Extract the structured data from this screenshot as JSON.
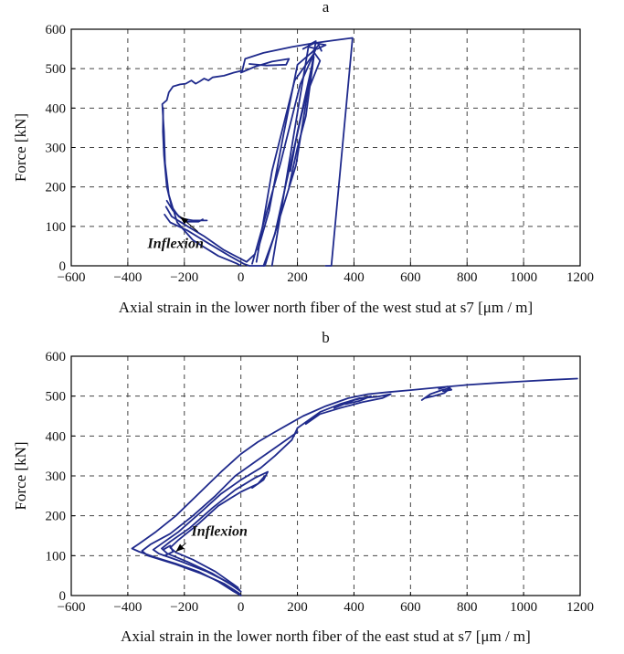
{
  "chart_data": [
    {
      "type": "line",
      "title": "a",
      "xlabel": "Axial strain in the lower north fiber of the west stud at s7 [μm / m]",
      "ylabel": "Force [kN]",
      "xlim": [
        -600,
        1200
      ],
      "ylim": [
        0,
        600
      ],
      "xticks": [
        "−600",
        "−400",
        "−200",
        "0",
        "200",
        "400",
        "600",
        "800",
        "1000",
        "1200"
      ],
      "yticks": [
        "0",
        "100",
        "200",
        "300",
        "400",
        "500",
        "600"
      ],
      "grid": true,
      "color": "#1f2a8c",
      "annotation": {
        "text": "Inflexion",
        "target": [
          -215,
          125
        ],
        "label_at": [
          -330,
          45
        ]
      },
      "series": [
        {
          "points": [
            [
              0,
              0
            ],
            [
              -15,
              6
            ],
            [
              -80,
              25
            ],
            [
              -170,
              65
            ],
            [
              -225,
              110
            ],
            [
              -255,
              180
            ],
            [
              -268,
              260
            ],
            [
              -272,
              340
            ],
            [
              -278,
              410
            ],
            [
              -262,
              420
            ],
            [
              -255,
              440
            ],
            [
              -240,
              455
            ],
            [
              -215,
              460
            ],
            [
              -195,
              462
            ],
            [
              -175,
              470
            ],
            [
              -160,
              462
            ],
            [
              -145,
              468
            ],
            [
              -130,
              475
            ],
            [
              -115,
              470
            ],
            [
              -100,
              478
            ],
            [
              -60,
              482
            ],
            [
              -25,
              490
            ],
            [
              5,
              495
            ],
            [
              15,
              525
            ],
            [
              80,
              540
            ],
            [
              180,
              555
            ],
            [
              260,
              565
            ],
            [
              330,
              572
            ],
            [
              395,
              578
            ],
            [
              320,
              0
            ],
            [
              300,
              0
            ]
          ]
        },
        {
          "points": [
            [
              -270,
              130
            ],
            [
              -250,
              110
            ],
            [
              -190,
              90
            ],
            [
              -110,
              55
            ],
            [
              -40,
              25
            ],
            [
              10,
              5
            ],
            [
              30,
              0
            ],
            [
              60,
              0
            ],
            [
              85,
              0
            ],
            [
              195,
              255
            ],
            [
              265,
              570
            ],
            [
              240,
              560
            ],
            [
              110,
              0
            ]
          ]
        },
        {
          "points": [
            [
              -265,
              150
            ],
            [
              -245,
              125
            ],
            [
              -200,
              105
            ],
            [
              -130,
              75
            ],
            [
              -60,
              40
            ],
            [
              20,
              10
            ],
            [
              50,
              30
            ]
          ]
        },
        {
          "points": [
            [
              -262,
              165
            ],
            [
              -240,
              140
            ],
            [
              -210,
              120
            ],
            [
              -170,
              115
            ],
            [
              -120,
              115
            ]
          ]
        },
        {
          "points": [
            [
              -275,
              400
            ],
            [
              -276,
              340
            ],
            [
              -272,
              280
            ],
            [
              -262,
              200
            ],
            [
              -245,
              150
            ],
            [
              -220,
              125
            ],
            [
              -190,
              112
            ],
            [
              -150,
              112
            ],
            [
              -135,
              118
            ]
          ]
        },
        {
          "points": [
            [
              170,
              200
            ],
            [
              200,
              300
            ],
            [
              230,
              380
            ],
            [
              258,
              530
            ],
            [
              240,
              470
            ],
            [
              200,
              340
            ],
            [
              175,
              240
            ]
          ]
        },
        {
          "points": [
            [
              55,
              10
            ],
            [
              110,
              240
            ],
            [
              190,
              470
            ],
            [
              260,
              540
            ],
            [
              280,
              520
            ],
            [
              230,
              430
            ],
            [
              160,
              210
            ],
            [
              120,
              80
            ],
            [
              80,
              0
            ]
          ]
        },
        {
          "points": [
            [
              40,
              5
            ],
            [
              140,
              260
            ],
            [
              210,
              460
            ],
            [
              265,
              550
            ],
            [
              200,
              510
            ],
            [
              150,
              330
            ],
            [
              100,
              140
            ],
            [
              60,
              40
            ]
          ]
        },
        {
          "points": [
            [
              0,
              490
            ],
            [
              50,
              505
            ],
            [
              110,
              518
            ],
            [
              170,
              525
            ],
            [
              160,
              510
            ],
            [
              90,
              508
            ],
            [
              30,
              512
            ]
          ]
        },
        {
          "points": [
            [
              220,
              550
            ],
            [
              260,
              565
            ],
            [
              300,
              560
            ],
            [
              270,
              550
            ],
            [
              240,
              555
            ]
          ]
        },
        {
          "points": [
            [
              250,
              540
            ],
            [
              275,
              560
            ],
            [
              285,
              545
            ]
          ]
        }
      ]
    },
    {
      "type": "line",
      "title": "b",
      "xlabel": "Axial strain in the lower north fiber of the east stud at s7 [μm / m]",
      "ylabel": "Force [kN]",
      "xlim": [
        -600,
        1200
      ],
      "ylim": [
        0,
        600
      ],
      "xticks": [
        "−600",
        "−400",
        "−200",
        "0",
        "200",
        "400",
        "600",
        "800",
        "1000",
        "1200"
      ],
      "yticks": [
        "0",
        "100",
        "200",
        "300",
        "400",
        "500",
        "600"
      ],
      "grid": true,
      "color": "#1f2a8c",
      "annotation": {
        "text": "Inflexion",
        "target": [
          -230,
          110
        ],
        "label_at": [
          -175,
          150
        ]
      },
      "series": [
        {
          "points": [
            [
              0,
              0
            ],
            [
              -25,
              10
            ],
            [
              -80,
              35
            ],
            [
              -150,
              60
            ],
            [
              -230,
              80
            ],
            [
              -300,
              95
            ],
            [
              -360,
              110
            ],
            [
              -385,
              118
            ],
            [
              -360,
              130
            ],
            [
              -300,
              160
            ],
            [
              -230,
              200
            ],
            [
              -150,
              255
            ],
            [
              -70,
              310
            ],
            [
              0,
              355
            ],
            [
              60,
              385
            ],
            [
              120,
              410
            ],
            [
              170,
              430
            ],
            [
              220,
              450
            ],
            [
              300,
              475
            ],
            [
              380,
              495
            ],
            [
              450,
              505
            ],
            [
              520,
              510
            ],
            [
              600,
              515
            ],
            [
              700,
              522
            ],
            [
              800,
              528
            ],
            [
              900,
              533
            ],
            [
              1000,
              537
            ],
            [
              1100,
              541
            ],
            [
              1190,
              544
            ]
          ]
        },
        {
          "points": [
            [
              -5,
              5
            ],
            [
              -60,
              30
            ],
            [
              -140,
              55
            ],
            [
              -230,
              78
            ],
            [
              -330,
              100
            ],
            [
              -350,
              112
            ],
            [
              -320,
              128
            ],
            [
              -250,
              155
            ],
            [
              -170,
              200
            ],
            [
              -90,
              250
            ],
            [
              -20,
              300
            ],
            [
              60,
              340
            ],
            [
              140,
              380
            ],
            [
              200,
              410
            ]
          ]
        },
        {
          "points": [
            [
              0,
              10
            ],
            [
              -50,
              35
            ],
            [
              -120,
              60
            ],
            [
              -210,
              85
            ],
            [
              -290,
              105
            ],
            [
              -310,
              115
            ],
            [
              -280,
              130
            ],
            [
              -220,
              160
            ],
            [
              -140,
              210
            ],
            [
              -70,
              255
            ],
            [
              0,
              290
            ],
            [
              70,
              320
            ],
            [
              120,
              350
            ],
            [
              180,
              390
            ],
            [
              200,
              420
            ]
          ]
        },
        {
          "points": [
            [
              -5,
              15
            ],
            [
              -100,
              55
            ],
            [
              -190,
              85
            ],
            [
              -260,
              105
            ],
            [
              -280,
              118
            ],
            [
              -250,
              135
            ],
            [
              -180,
              170
            ],
            [
              -100,
              220
            ],
            [
              -20,
              265
            ],
            [
              50,
              295
            ],
            [
              95,
              310
            ],
            [
              80,
              290
            ],
            [
              40,
              270
            ]
          ]
        },
        {
          "points": [
            [
              -10,
              20
            ],
            [
              -90,
              60
            ],
            [
              -170,
              90
            ],
            [
              -230,
              108
            ],
            [
              -250,
              120
            ],
            [
              -220,
              140
            ],
            [
              -150,
              180
            ],
            [
              -80,
              225
            ],
            [
              0,
              260
            ],
            [
              60,
              280
            ],
            [
              85,
              300
            ]
          ]
        },
        {
          "points": [
            [
              -270,
              100
            ],
            [
              -240,
              110
            ],
            [
              -250,
              125
            ],
            [
              -275,
              115
            ]
          ]
        },
        {
          "points": [
            [
              200,
              420
            ],
            [
              280,
              460
            ],
            [
              350,
              480
            ],
            [
              420,
              495
            ],
            [
              480,
              498
            ],
            [
              530,
              505
            ],
            [
              500,
              495
            ],
            [
              430,
              485
            ],
            [
              350,
              470
            ],
            [
              280,
              455
            ],
            [
              230,
              430
            ]
          ]
        },
        {
          "points": [
            [
              330,
              470
            ],
            [
              400,
              490
            ],
            [
              460,
              500
            ],
            [
              420,
              488
            ],
            [
              370,
              480
            ]
          ]
        },
        {
          "points": [
            [
              640,
              490
            ],
            [
              670,
              505
            ],
            [
              710,
              515
            ],
            [
              740,
              520
            ],
            [
              720,
              508
            ],
            [
              680,
              500
            ],
            [
              650,
              495
            ]
          ]
        },
        {
          "points": [
            [
              700,
              518
            ],
            [
              730,
              524
            ],
            [
              745,
              516
            ],
            [
              715,
              512
            ]
          ]
        }
      ]
    }
  ]
}
